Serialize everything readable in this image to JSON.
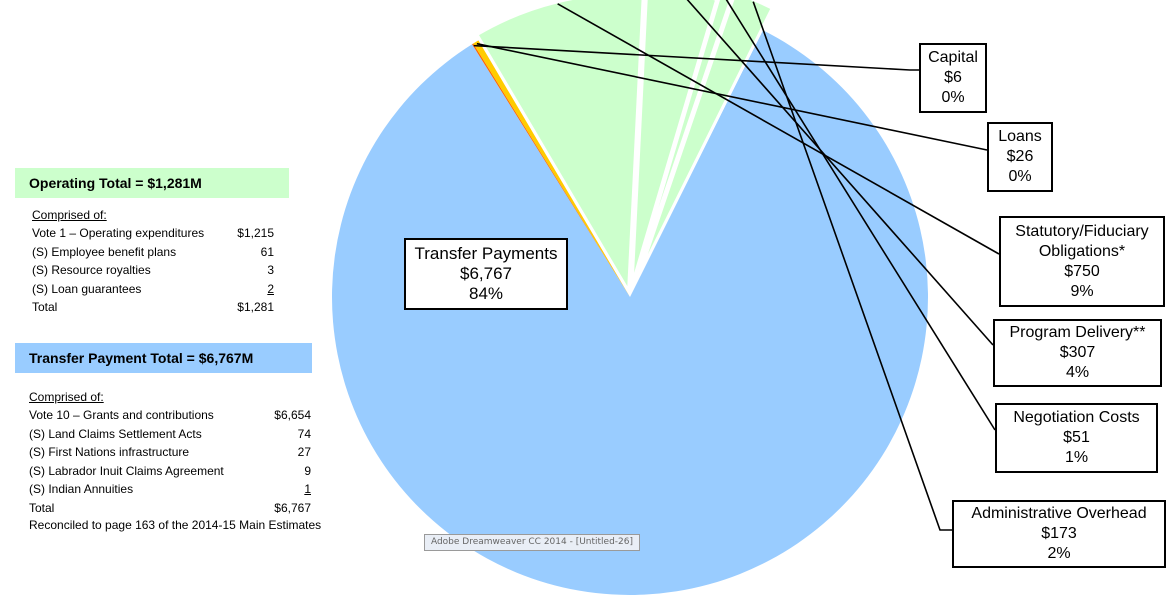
{
  "operating": {
    "header": "Operating  Total = $1,281M",
    "comprised_label": "Comprised of:",
    "rows": [
      {
        "label": "Vote 1 – Operating expenditures",
        "amount": "$1,215"
      },
      {
        "label": "(S) Employee benefit plans",
        "amount": "61"
      },
      {
        "label": "(S) Resource royalties",
        "amount": "3"
      },
      {
        "label": "(S) Loan guarantees",
        "amount": "2"
      },
      {
        "label": "Total",
        "amount": "$1,281"
      }
    ]
  },
  "transfer": {
    "header": "Transfer  Payment  Total = $6,767M",
    "comprised_label": "Comprised of:",
    "rows": [
      {
        "label": "Vote 10  –  Grants and contributions",
        "amount": "$6,654"
      },
      {
        "label": "(S) Land Claims Settlement Acts",
        "amount": "74"
      },
      {
        "label": "(S) First Nations infrastructure",
        "amount": "27"
      },
      {
        "label": "(S) Labrador Inuit Claims Agreement",
        "amount": "9"
      },
      {
        "label": "(S) Indian Annuities",
        "amount": "1"
      },
      {
        "label": "Total",
        "amount": "$6,767"
      }
    ]
  },
  "reconciled_note": "Reconciled to page 163 of the 2014-15 Main Estimates",
  "watermark": "Adobe Dreamweaver CC 2014 - [Untitled-26]",
  "colors": {
    "transfer": "#99ccff",
    "green": "#ccffcc",
    "capital": "#ff6600",
    "loans": "#ffcc00"
  },
  "chart_data": {
    "type": "pie",
    "title": "",
    "slices": [
      {
        "name": "Transfer Payments",
        "value": 6767,
        "value_label": "$6,767",
        "percent": "84%",
        "color": "#99ccff"
      },
      {
        "name": "Capital",
        "value": 6,
        "value_label": "$6",
        "percent": "0%",
        "color": "#ff6600"
      },
      {
        "name": "Loans",
        "value": 26,
        "value_label": "$26",
        "percent": "0%",
        "color": "#ffcc00"
      },
      {
        "name": "Statutory/Fiduciary Obligations*",
        "name_lines": [
          "Statutory/Fiduciary",
          "Obligations*"
        ],
        "value": 750,
        "value_label": "$750",
        "percent": "9%",
        "color": "#ccffcc"
      },
      {
        "name": "Program Delivery**",
        "value": 307,
        "value_label": "$307",
        "percent": "4%",
        "color": "#ccffcc"
      },
      {
        "name": "Negotiation Costs",
        "value": 51,
        "value_label": "$51",
        "percent": "1%",
        "color": "#ccffcc"
      },
      {
        "name": "Administrative Overhead",
        "value": 173,
        "value_label": "$173",
        "percent": "2%",
        "color": "#ccffcc"
      }
    ]
  }
}
